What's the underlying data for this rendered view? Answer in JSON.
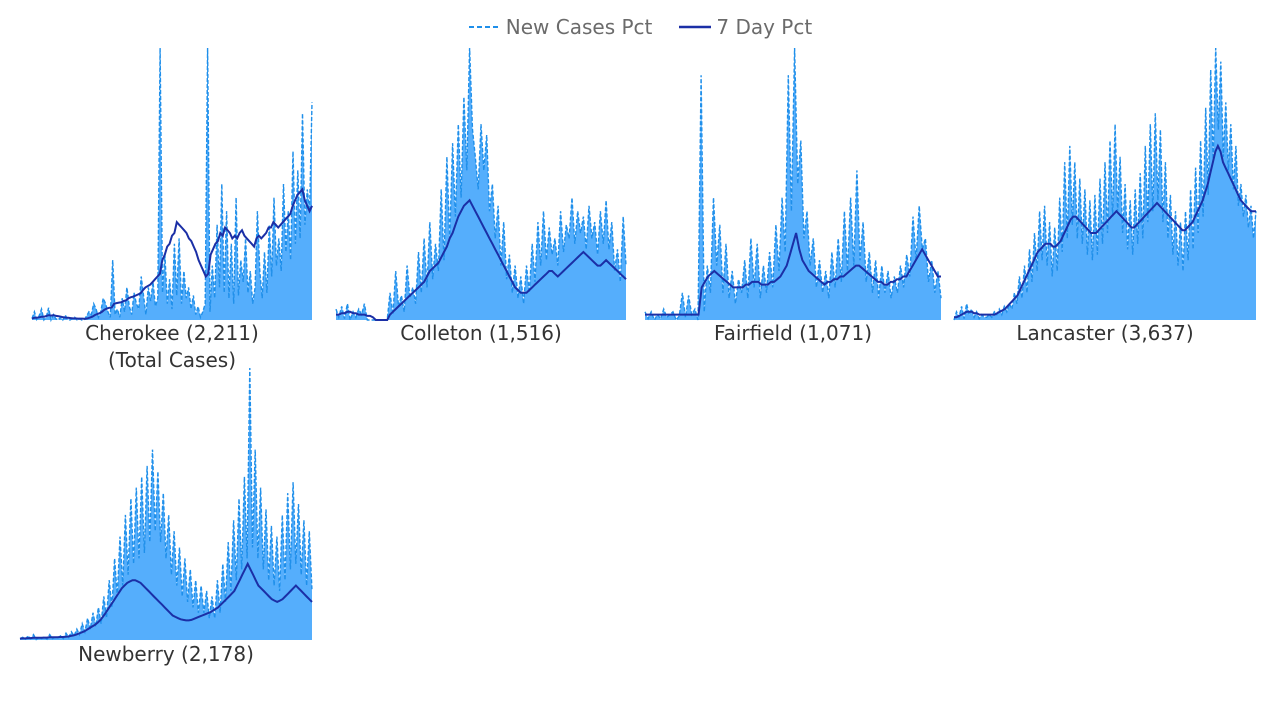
{
  "legend": {
    "dashed_label": "New Cases Pct",
    "solid_label": "7 Day Pct"
  },
  "colors": {
    "area_fill": "#55aefc",
    "dashed_line": "#1f8fea",
    "solid_line": "#1b2fa6"
  },
  "chart_data": [
    {
      "type": "line",
      "title": "Cherokee (2,211)",
      "subtitle": "(Total Cases)",
      "series": [
        {
          "name": "New Cases Pct",
          "style": "dashed",
          "values": [
            0.5,
            3,
            0.2,
            1.5,
            4,
            0,
            1,
            4.5,
            0,
            2,
            0.5,
            0,
            1,
            0,
            1.8,
            0.3,
            0,
            0.5,
            1,
            0,
            0.5,
            0,
            0,
            1.5,
            3,
            2,
            6,
            4,
            1,
            3,
            8,
            6,
            3,
            1,
            22,
            2,
            4,
            1,
            8,
            3,
            12,
            5,
            2,
            10,
            6,
            4,
            16,
            9,
            2,
            12,
            7,
            14,
            5,
            8,
            100,
            10,
            24,
            6,
            15,
            4,
            28,
            9,
            30,
            6,
            18,
            8,
            12,
            4,
            9,
            2,
            5,
            1,
            3,
            6,
            100,
            3,
            20,
            8,
            35,
            12,
            50,
            10,
            40,
            8,
            28,
            6,
            45,
            9,
            22,
            14,
            30,
            10,
            18,
            6,
            12,
            40,
            18,
            8,
            25,
            10,
            35,
            16,
            45,
            20,
            30,
            18,
            50,
            25,
            40,
            22,
            62,
            28,
            55,
            30,
            76,
            35,
            48,
            40,
            80
          ],
          "note_scale": "relative 0-100"
        },
        {
          "name": "7 Day Pct",
          "style": "solid",
          "values": [
            0.5,
            0.8,
            0.8,
            1,
            1.2,
            1.2,
            1.5,
            1.8,
            1.6,
            1.8,
            1.5,
            1.4,
            1.2,
            1,
            0.9,
            0.8,
            0.7,
            0.6,
            0.6,
            0.5,
            0.5,
            0.5,
            0.4,
            0.6,
            0.9,
            1.2,
            1.8,
            2.2,
            2.5,
            3,
            3.8,
            4.2,
            4.5,
            4.6,
            6,
            6.2,
            6.4,
            6.5,
            7,
            7.2,
            8,
            8.4,
            8.6,
            9,
            9.4,
            9.8,
            11,
            12,
            12.5,
            13,
            14,
            15,
            16,
            17,
            22,
            24,
            27,
            28,
            31,
            32,
            36,
            35,
            34,
            33,
            32,
            30,
            29,
            27,
            25,
            22,
            20,
            18,
            16,
            17,
            24,
            26,
            28,
            29,
            32,
            31,
            34,
            33,
            32,
            30,
            31,
            30,
            32,
            33,
            31,
            30,
            29,
            28,
            27,
            30,
            31,
            30,
            31,
            32,
            34,
            34,
            36,
            35,
            34,
            35,
            36,
            37,
            38,
            39,
            42,
            44,
            46,
            47,
            48,
            44,
            42,
            40,
            42
          ]
        }
      ]
    },
    {
      "type": "line",
      "title": "Colleton (1,516)",
      "series": [
        {
          "name": "New Cases Pct",
          "style": "dashed",
          "values": [
            4,
            1,
            5,
            0.5,
            6,
            0,
            3,
            1,
            4,
            2,
            6,
            0,
            0,
            0,
            0,
            0,
            0,
            0,
            0,
            10,
            2,
            18,
            5,
            9,
            3,
            20,
            8,
            12,
            6,
            25,
            10,
            30,
            12,
            36,
            15,
            28,
            18,
            48,
            22,
            60,
            30,
            65,
            38,
            72,
            45,
            82,
            55,
            100,
            70,
            60,
            48,
            72,
            55,
            68,
            40,
            50,
            30,
            42,
            20,
            36,
            15,
            24,
            10,
            20,
            8,
            16,
            6,
            20,
            10,
            28,
            14,
            36,
            20,
            40,
            22,
            34,
            24,
            30,
            20,
            40,
            25,
            35,
            30,
            45,
            28,
            40,
            32,
            38,
            26,
            42,
            30,
            36,
            24,
            40,
            28,
            44,
            26,
            36,
            18,
            26,
            14,
            38,
            20
          ],
          "note_scale": "relative 0-100"
        },
        {
          "name": "7 Day Pct",
          "style": "solid",
          "values": [
            2,
            2,
            2.5,
            2.5,
            3,
            3,
            2.5,
            2.5,
            2,
            2,
            2,
            1.5,
            1.5,
            1,
            0,
            0,
            0,
            0,
            0,
            2,
            3,
            4,
            5,
            6,
            7,
            8,
            9,
            10,
            11,
            12,
            13,
            14,
            16,
            18,
            19,
            20,
            21,
            23,
            25,
            27,
            30,
            32,
            35,
            38,
            40,
            42,
            43,
            44,
            42,
            40,
            38,
            36,
            34,
            32,
            30,
            28,
            26,
            24,
            22,
            20,
            18,
            16,
            14,
            12,
            11,
            10,
            10,
            10,
            11,
            12,
            13,
            14,
            15,
            16,
            17,
            18,
            18,
            17,
            16,
            17,
            18,
            19,
            20,
            21,
            22,
            23,
            24,
            25,
            24,
            23,
            22,
            21,
            20,
            20,
            21,
            22,
            21,
            20,
            19,
            18,
            17,
            16,
            15
          ]
        }
      ]
    },
    {
      "type": "line",
      "title": "Fairfield (1,071)",
      "series": [
        {
          "name": "New Cases Pct",
          "style": "dashed",
          "values": [
            3,
            0.5,
            3,
            0,
            2,
            0.5,
            4,
            1,
            2,
            3,
            0,
            1.5,
            10,
            1,
            9,
            2,
            4,
            0,
            90,
            3,
            20,
            10,
            45,
            20,
            35,
            10,
            28,
            8,
            18,
            6,
            15,
            10,
            22,
            8,
            30,
            12,
            28,
            8,
            20,
            10,
            25,
            12,
            35,
            18,
            45,
            25,
            90,
            40,
            100,
            50,
            66,
            30,
            40,
            20,
            30,
            12,
            22,
            10,
            18,
            8,
            25,
            12,
            30,
            14,
            40,
            18,
            45,
            20,
            55,
            22,
            36,
            14,
            25,
            10,
            22,
            8,
            20,
            10,
            18,
            8,
            16,
            10,
            20,
            12,
            24,
            16,
            38,
            22,
            42,
            26,
            30,
            14,
            22,
            10,
            18,
            8
          ],
          "note_scale": "relative 0-100"
        },
        {
          "name": "7 Day Pct",
          "style": "solid",
          "values": [
            2,
            2,
            2,
            2,
            2,
            2,
            2,
            2,
            2,
            2,
            2,
            2,
            2,
            2,
            2,
            2,
            2,
            2,
            12,
            14,
            16,
            17,
            18,
            17,
            16,
            15,
            14,
            13,
            12,
            12,
            12,
            12,
            13,
            13,
            14,
            14,
            14,
            13,
            13,
            13,
            14,
            14,
            15,
            16,
            18,
            20,
            24,
            28,
            32,
            26,
            22,
            20,
            18,
            17,
            16,
            15,
            14,
            13,
            14,
            14,
            15,
            15,
            16,
            16,
            17,
            18,
            19,
            20,
            20,
            19,
            18,
            17,
            16,
            15,
            14,
            14,
            13,
            13,
            14,
            14,
            15,
            15,
            16,
            16,
            18,
            20,
            22,
            24,
            26,
            24,
            22,
            20,
            18,
            16,
            16
          ]
        }
      ]
    },
    {
      "type": "line",
      "title": "Lancaster (3,637)",
      "series": [
        {
          "name": "New Cases Pct",
          "style": "dashed",
          "values": [
            0,
            3,
            1,
            5,
            0.5,
            6,
            2,
            4,
            1,
            3,
            0.5,
            2,
            1,
            1,
            2,
            1,
            3,
            2,
            4,
            2,
            5,
            3,
            6,
            4,
            10,
            6,
            16,
            8,
            20,
            10,
            26,
            14,
            32,
            18,
            40,
            22,
            42,
            20,
            36,
            16,
            34,
            18,
            45,
            25,
            58,
            30,
            64,
            35,
            58,
            30,
            52,
            28,
            48,
            24,
            44,
            22,
            46,
            24,
            52,
            28,
            58,
            32,
            66,
            38,
            72,
            40,
            60,
            32,
            50,
            26,
            44,
            24,
            48,
            28,
            54,
            30,
            64,
            36,
            72,
            40,
            76,
            44,
            70,
            36,
            58,
            30,
            46,
            24,
            40,
            20,
            36,
            18,
            40,
            22,
            48,
            26,
            56,
            32,
            66,
            38,
            78,
            46,
            92,
            58,
            100,
            70,
            95,
            60,
            80,
            55,
            72,
            48,
            64,
            42,
            50,
            38,
            46,
            34,
            42,
            30,
            40
          ],
          "note_scale": "relative 0-100"
        },
        {
          "name": "7 Day Pct",
          "style": "solid",
          "values": [
            1,
            1,
            1.5,
            2,
            2.5,
            3,
            3,
            3,
            2.5,
            2.5,
            2,
            2,
            2,
            2,
            2,
            2,
            2,
            2.5,
            3,
            3.5,
            4,
            5,
            6,
            7,
            8,
            9,
            11,
            13,
            15,
            17,
            19,
            21,
            23,
            25,
            26,
            27,
            28,
            28,
            28,
            27,
            27,
            28,
            29,
            31,
            33,
            35,
            37,
            38,
            38,
            37,
            36,
            35,
            34,
            33,
            32,
            32,
            32,
            33,
            34,
            35,
            36,
            37,
            38,
            39,
            40,
            39,
            38,
            37,
            36,
            35,
            34,
            34,
            35,
            36,
            37,
            38,
            39,
            40,
            41,
            42,
            43,
            42,
            41,
            40,
            39,
            38,
            37,
            36,
            35,
            34,
            33,
            33,
            34,
            35,
            36,
            38,
            40,
            42,
            44,
            47,
            50,
            54,
            58,
            62,
            64,
            62,
            58,
            56,
            54,
            52,
            50,
            48,
            46,
            44,
            43,
            42,
            41,
            40,
            40,
            40
          ]
        }
      ]
    },
    {
      "type": "line",
      "title": "Newberry (2,178)",
      "series": [
        {
          "name": "New Cases Pct",
          "style": "dashed",
          "values": [
            0.5,
            1,
            0.3,
            1.5,
            0.5,
            2,
            0.2,
            1,
            0.5,
            1.2,
            0.3,
            2,
            0.5,
            1,
            0.8,
            1.5,
            0.5,
            2.5,
            1,
            3,
            1.5,
            4,
            2,
            6,
            3,
            8,
            4,
            10,
            5,
            12,
            6,
            16,
            8,
            22,
            12,
            30,
            16,
            38,
            20,
            46,
            24,
            52,
            28,
            56,
            30,
            60,
            32,
            64,
            36,
            70,
            40,
            62,
            36,
            54,
            30,
            46,
            24,
            40,
            20,
            34,
            16,
            30,
            14,
            26,
            12,
            22,
            10,
            20,
            10,
            18,
            8,
            16,
            8,
            22,
            10,
            28,
            14,
            36,
            18,
            44,
            22,
            52,
            26,
            60,
            30,
            100,
            34,
            70,
            30,
            56,
            26,
            48,
            22,
            42,
            20,
            38,
            18,
            46,
            22,
            54,
            26,
            58,
            28,
            50,
            24,
            44,
            20,
            40,
            18
          ],
          "note_scale": "relative 0-100"
        },
        {
          "name": "7 Day Pct",
          "style": "solid",
          "values": [
            0.5,
            0.6,
            0.6,
            0.7,
            0.7,
            0.8,
            0.8,
            0.8,
            0.8,
            0.9,
            0.9,
            1,
            1,
            1,
            1,
            1.1,
            1.1,
            1.2,
            1.3,
            1.5,
            1.7,
            2,
            2.4,
            2.8,
            3.2,
            3.8,
            4.4,
            5,
            5.6,
            6.4,
            7.4,
            8.6,
            10,
            11.5,
            13,
            14.5,
            16,
            17.5,
            19,
            20,
            21,
            21.5,
            22,
            22,
            21.5,
            21,
            20,
            19,
            18,
            17,
            16,
            15,
            14,
            13,
            12,
            11,
            10,
            9,
            8.5,
            8,
            7.6,
            7.4,
            7.2,
            7.2,
            7.4,
            7.8,
            8.2,
            8.6,
            9,
            9.4,
            9.8,
            10.2,
            10.8,
            11.4,
            12,
            13,
            14,
            15,
            16,
            17,
            18,
            20,
            22,
            24,
            26,
            28,
            26,
            24,
            22,
            20,
            19,
            18,
            17,
            16,
            15,
            14.5,
            14,
            14.5,
            15,
            16,
            17,
            18,
            19,
            20,
            19,
            18,
            17,
            16,
            15,
            14
          ]
        }
      ]
    }
  ]
}
